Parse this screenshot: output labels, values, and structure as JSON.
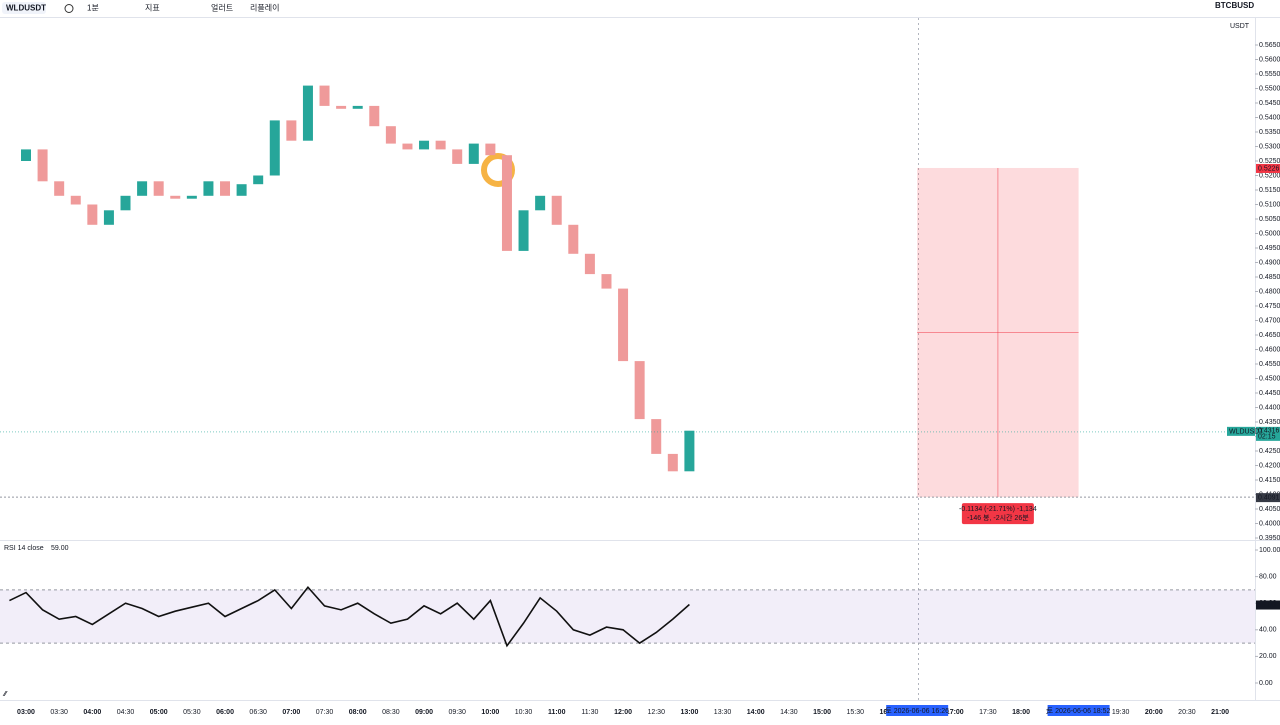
{
  "toolbar": {
    "symbol": "WLDUSDT",
    "interval": "1분",
    "indicators": "지표",
    "alert": "얼러트",
    "replay": "리플레이",
    "compare_symbol": "BTCBUSD",
    "currency": "USDT"
  },
  "chart_data": [
    {
      "type": "candlestick",
      "name": "WLDUSDT",
      "up_color": "#26a69a",
      "down_color": "#ef9a9a",
      "x": [
        "02:45",
        "03:00",
        "03:15",
        "03:30",
        "03:45",
        "04:00",
        "04:15",
        "04:30",
        "04:45",
        "05:00",
        "05:15",
        "05:30",
        "05:45",
        "06:00",
        "06:15",
        "06:30",
        "06:45",
        "07:00",
        "07:15",
        "07:30",
        "07:45",
        "08:00",
        "08:15",
        "08:30",
        "08:45",
        "09:00",
        "09:15",
        "09:30",
        "09:45",
        "10:00",
        "10:15",
        "10:30",
        "10:45",
        "11:00",
        "11:15",
        "11:30",
        "11:45",
        "12:00",
        "12:15",
        "12:30",
        "12:45",
        "13:00"
      ],
      "values": [
        0.525,
        0.529,
        0.518,
        0.513,
        0.51,
        0.503,
        0.508,
        0.513,
        0.518,
        0.513,
        0.512,
        0.513,
        0.518,
        0.513,
        0.517,
        0.52,
        0.539,
        0.532,
        0.551,
        0.544,
        0.543,
        0.544,
        0.537,
        0.531,
        0.529,
        0.532,
        0.529,
        0.524,
        0.531,
        0.527,
        0.494,
        0.508,
        0.513,
        0.503,
        0.493,
        0.486,
        0.481,
        0.456,
        0.436,
        0.424,
        0.418,
        0.432
      ],
      "ylim": [
        0.395,
        0.565
      ],
      "yticks": [
        {
          "value": 0.395,
          "label": "0.3950"
        },
        {
          "value": 0.4,
          "label": "0.4000"
        },
        {
          "value": 0.405,
          "label": "0.4050"
        },
        {
          "value": 0.41,
          "label": "0.4100"
        },
        {
          "value": 0.415,
          "label": "0.4150"
        },
        {
          "value": 0.42,
          "label": "0.4200"
        },
        {
          "value": 0.425,
          "label": "0.4250"
        },
        {
          "value": 0.43,
          "label": "0.4300"
        },
        {
          "value": 0.435,
          "label": "0.4350"
        },
        {
          "value": 0.44,
          "label": "0.4400"
        },
        {
          "value": 0.445,
          "label": "0.4450"
        },
        {
          "value": 0.45,
          "label": "0.4500"
        },
        {
          "value": 0.455,
          "label": "0.4550"
        },
        {
          "value": 0.46,
          "label": "0.4600"
        },
        {
          "value": 0.465,
          "label": "0.4650"
        },
        {
          "value": 0.47,
          "label": "0.4700"
        },
        {
          "value": 0.475,
          "label": "0.4750"
        },
        {
          "value": 0.48,
          "label": "0.4800"
        },
        {
          "value": 0.485,
          "label": "0.4850"
        },
        {
          "value": 0.49,
          "label": "0.4900"
        },
        {
          "value": 0.495,
          "label": "0.4950"
        },
        {
          "value": 0.5,
          "label": "0.5000"
        },
        {
          "value": 0.505,
          "label": "0.5050"
        },
        {
          "value": 0.51,
          "label": "0.5100"
        },
        {
          "value": 0.515,
          "label": "0.5150"
        },
        {
          "value": 0.52,
          "label": "0.5200"
        },
        {
          "value": 0.525,
          "label": "0.5250"
        },
        {
          "value": 0.53,
          "label": "0.5300"
        },
        {
          "value": 0.535,
          "label": "0.5350"
        },
        {
          "value": 0.54,
          "label": "0.5400"
        },
        {
          "value": 0.545,
          "label": "0.5450"
        },
        {
          "value": 0.55,
          "label": "0.5500"
        },
        {
          "value": 0.555,
          "label": "0.5550"
        },
        {
          "value": 0.56,
          "label": "0.5600"
        },
        {
          "value": 0.565,
          "label": "0.5650"
        }
      ],
      "last_price": {
        "symbol": "WLDUSDT",
        "value": 0.4316,
        "label": "0.4316",
        "timer": "02:15"
      },
      "position_tool": {
        "top": {
          "value": 0.5226,
          "label": "0.5226"
        },
        "bottom": {
          "value": 0.4091,
          "label": "0.4091"
        },
        "start_time": "16:26",
        "end_time": "18:52",
        "start_label": "토 2026-06-06  16:26",
        "end_label": "토 2026-06-06  18:52",
        "stats_line1": "-0.1134 (-21.71%) -1,134",
        "stats_line2": "-146 봉, -2시간 26분"
      },
      "x_labels": [
        "03:00",
        "03:30",
        "04:00",
        "04:30",
        "05:00",
        "05:30",
        "06:00",
        "06:30",
        "07:00",
        "07:30",
        "08:00",
        "08:30",
        "09:00",
        "09:30",
        "10:00",
        "10:30",
        "11:00",
        "11:30",
        "12:00",
        "12:30",
        "13:00",
        "13:30",
        "14:00",
        "14:30",
        "15:00",
        "15:30",
        "16:00",
        "16:30",
        "17:00",
        "17:30",
        "18:00",
        "18:30",
        "19:00",
        "19:30",
        "20:00",
        "20:30",
        "21:00"
      ]
    },
    {
      "type": "line",
      "name": "RSI 14 close",
      "color": "#111111",
      "current_label": "59.00",
      "values": [
        62,
        68,
        55,
        48,
        50,
        44,
        52,
        60,
        56,
        50,
        54,
        57,
        60,
        50,
        56,
        62,
        70,
        56,
        72,
        58,
        55,
        60,
        52,
        45,
        48,
        58,
        52,
        60,
        48,
        62,
        28,
        45,
        64,
        54,
        40,
        36,
        42,
        40,
        30,
        38,
        48,
        59
      ],
      "ylim": [
        0,
        100
      ],
      "bands": [
        30,
        70
      ],
      "yticks": [
        {
          "value": 0,
          "label": "0.00"
        },
        {
          "value": 20,
          "label": "20.00"
        },
        {
          "value": 40,
          "label": "40.00"
        },
        {
          "value": 60,
          "label": "60.00"
        },
        {
          "value": 80,
          "label": "80.00"
        },
        {
          "value": 100,
          "label": "100.00"
        }
      ]
    }
  ]
}
